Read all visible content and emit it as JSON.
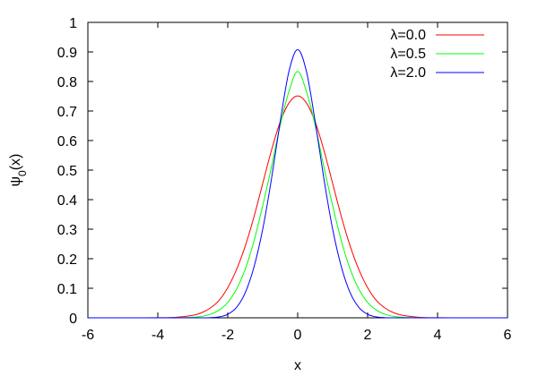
{
  "chart_data": {
    "type": "line",
    "title": "",
    "xlabel": "x",
    "ylabel": "ψ0(x)",
    "xlim": [
      -6,
      6
    ],
    "ylim": [
      0,
      1
    ],
    "xticks": [
      -6,
      -4,
      -2,
      0,
      2,
      4,
      6
    ],
    "yticks": [
      0,
      0.1,
      0.2,
      0.3,
      0.4,
      0.5,
      0.6,
      0.7,
      0.8,
      0.9,
      1
    ],
    "grid": false,
    "legend_position": "top-right",
    "series": [
      {
        "name": "λ=0.0",
        "color": "#ff0000",
        "x": [
          -6,
          -5.5,
          -5,
          -4.5,
          -4,
          -3.5,
          -3,
          -2.75,
          -2.5,
          -2.25,
          -2,
          -1.75,
          -1.5,
          -1.25,
          -1,
          -0.75,
          -0.5,
          -0.25,
          0,
          0.25,
          0.5,
          0.75,
          1,
          1.25,
          1.5,
          1.75,
          2,
          2.25,
          2.5,
          2.75,
          3,
          3.5,
          4,
          4.5,
          5,
          5.5,
          6
        ],
        "y": [
          0,
          0,
          0,
          0,
          0.0003,
          0.0016,
          0.0083,
          0.017,
          0.033,
          0.059,
          0.102,
          0.163,
          0.243,
          0.342,
          0.455,
          0.567,
          0.663,
          0.727,
          0.751,
          0.727,
          0.663,
          0.567,
          0.455,
          0.342,
          0.243,
          0.163,
          0.102,
          0.059,
          0.033,
          0.017,
          0.0083,
          0.0016,
          0.0003,
          0,
          0,
          0,
          0
        ]
      },
      {
        "name": "λ=0.5",
        "color": "#00ff00",
        "x": [
          -6,
          -5,
          -4,
          -3.5,
          -3,
          -2.75,
          -2.5,
          -2.25,
          -2,
          -1.75,
          -1.5,
          -1.25,
          -1,
          -0.75,
          -0.5,
          -0.25,
          0,
          0.25,
          0.5,
          0.75,
          1,
          1.25,
          1.5,
          1.75,
          2,
          2.25,
          2.5,
          2.75,
          3,
          3.5,
          4,
          5,
          6
        ],
        "y": [
          0,
          0,
          0,
          0.0003,
          0.0018,
          0.0048,
          0.012,
          0.026,
          0.052,
          0.097,
          0.165,
          0.26,
          0.38,
          0.51,
          0.652,
          0.766,
          0.834,
          0.766,
          0.652,
          0.51,
          0.38,
          0.26,
          0.165,
          0.097,
          0.052,
          0.026,
          0.012,
          0.0048,
          0.0018,
          0.0003,
          0,
          0,
          0
        ]
      },
      {
        "name": "λ=2.0",
        "color": "#0000ff",
        "x": [
          -6,
          -4,
          -3,
          -2.5,
          -2.25,
          -2,
          -1.75,
          -1.5,
          -1.25,
          -1,
          -0.75,
          -0.5,
          -0.25,
          0,
          0.25,
          0.5,
          0.75,
          1,
          1.25,
          1.5,
          1.75,
          2,
          2.25,
          2.5,
          3,
          4,
          6
        ],
        "y": [
          0,
          0,
          0,
          0.0005,
          0.003,
          0.012,
          0.035,
          0.085,
          0.172,
          0.3,
          0.47,
          0.664,
          0.834,
          0.908,
          0.834,
          0.664,
          0.47,
          0.3,
          0.172,
          0.085,
          0.035,
          0.012,
          0.003,
          0.0005,
          0,
          0,
          0
        ]
      }
    ]
  }
}
